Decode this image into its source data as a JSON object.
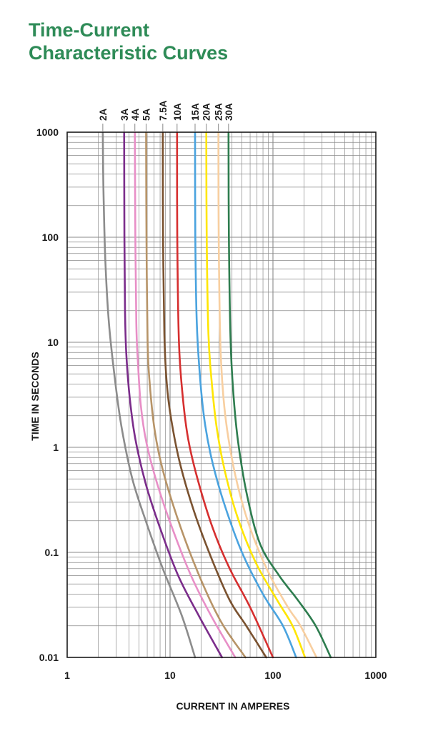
{
  "title_line1": "Time-Current",
  "title_line2": "Characteristic Curves",
  "colors": {
    "title": "#2e8b57",
    "grid": "#8a8a8a",
    "axis": "#1a1a1a"
  },
  "chart_data": {
    "type": "line",
    "title": "Time-Current Characteristic Curves",
    "xlabel": "CURRENT IN AMPERES",
    "ylabel": "TIME IN SECONDS",
    "xscale": "log",
    "yscale": "log",
    "xlim": [
      1,
      1000
    ],
    "ylim": [
      0.01,
      1000
    ],
    "xticks": [
      "1",
      "10",
      "100",
      "1000"
    ],
    "yticks": [
      "0.01",
      "0.1",
      "1",
      "10",
      "100",
      "1000"
    ],
    "grid": true,
    "series": [
      {
        "name": "2A",
        "color": "#8c8c8c",
        "points": [
          [
            2.22,
            1000
          ],
          [
            2.25,
            300
          ],
          [
            2.35,
            60
          ],
          [
            2.55,
            15
          ],
          [
            2.95,
            4
          ],
          [
            3.4,
            1.5
          ],
          [
            4.3,
            0.5
          ],
          [
            5.8,
            0.2
          ],
          [
            8.5,
            0.07
          ],
          [
            13,
            0.025
          ],
          [
            17.5,
            0.01
          ]
        ]
      },
      {
        "name": "3A",
        "color": "#7b2d8b",
        "points": [
          [
            3.58,
            1000
          ],
          [
            3.6,
            100
          ],
          [
            3.65,
            20
          ],
          [
            3.75,
            8
          ],
          [
            4.05,
            3
          ],
          [
            4.6,
            1.2
          ],
          [
            5.8,
            0.45
          ],
          [
            8,
            0.17
          ],
          [
            12,
            0.06
          ],
          [
            19,
            0.025
          ],
          [
            32,
            0.01
          ]
        ]
      },
      {
        "name": "4A",
        "color": "#e88fc7",
        "points": [
          [
            4.55,
            1000
          ],
          [
            4.6,
            100
          ],
          [
            4.7,
            15
          ],
          [
            4.85,
            7
          ],
          [
            5.2,
            2.5
          ],
          [
            5.9,
            1.1
          ],
          [
            7.5,
            0.45
          ],
          [
            10.5,
            0.17
          ],
          [
            16,
            0.06
          ],
          [
            25,
            0.025
          ],
          [
            43,
            0.01
          ]
        ]
      },
      {
        "name": "5A",
        "color": "#b79468",
        "points": [
          [
            5.85,
            1000
          ],
          [
            5.9,
            100
          ],
          [
            6.05,
            10
          ],
          [
            6.35,
            4
          ],
          [
            7.05,
            1.5
          ],
          [
            8.2,
            0.7
          ],
          [
            10.5,
            0.3
          ],
          [
            15,
            0.11
          ],
          [
            23,
            0.04
          ],
          [
            33,
            0.02
          ],
          [
            54,
            0.01
          ]
        ]
      },
      {
        "name": "7.5A",
        "color": "#7a5230",
        "points": [
          [
            8.5,
            1000
          ],
          [
            8.55,
            100
          ],
          [
            8.8,
            12
          ],
          [
            9.3,
            4
          ],
          [
            10.3,
            1.8
          ],
          [
            12.5,
            0.7
          ],
          [
            17,
            0.25
          ],
          [
            25,
            0.09
          ],
          [
            38,
            0.035
          ],
          [
            55,
            0.02
          ],
          [
            86,
            0.01
          ]
        ]
      },
      {
        "name": "10A",
        "color": "#d62f2f",
        "points": [
          [
            11.7,
            1000
          ],
          [
            11.75,
            100
          ],
          [
            12.2,
            10
          ],
          [
            13.3,
            3
          ],
          [
            15,
            1.2
          ],
          [
            18.5,
            0.5
          ],
          [
            26,
            0.17
          ],
          [
            38,
            0.07
          ],
          [
            60,
            0.03
          ],
          [
            100,
            0.01
          ]
        ]
      },
      {
        "name": "15A",
        "color": "#4aa3df",
        "points": [
          [
            17.5,
            1000
          ],
          [
            17.6,
            100
          ],
          [
            18.2,
            15
          ],
          [
            19.8,
            4
          ],
          [
            22,
            1.6
          ],
          [
            26,
            0.7
          ],
          [
            34,
            0.28
          ],
          [
            50,
            0.1
          ],
          [
            80,
            0.04
          ],
          [
            125,
            0.02
          ],
          [
            168,
            0.01
          ]
        ]
      },
      {
        "name": "20A",
        "color": "#ffe600",
        "points": [
          [
            22.5,
            1000
          ],
          [
            22.7,
            100
          ],
          [
            23.6,
            12
          ],
          [
            25.5,
            4
          ],
          [
            28.5,
            1.5
          ],
          [
            34,
            0.6
          ],
          [
            45,
            0.22
          ],
          [
            68,
            0.08
          ],
          [
            110,
            0.035
          ],
          [
            155,
            0.02
          ],
          [
            205,
            0.01
          ]
        ]
      },
      {
        "name": "25A",
        "color": "#f8cfa0",
        "points": [
          [
            29.5,
            1000
          ],
          [
            29.7,
            100
          ],
          [
            30.8,
            10
          ],
          [
            33,
            3
          ],
          [
            37,
            1.2
          ],
          [
            45,
            0.45
          ],
          [
            60,
            0.17
          ],
          [
            90,
            0.065
          ],
          [
            140,
            0.03
          ],
          [
            185,
            0.02
          ],
          [
            265,
            0.01
          ]
        ]
      },
      {
        "name": "30A",
        "color": "#2e7d4f",
        "points": [
          [
            37,
            1000
          ],
          [
            37.3,
            100
          ],
          [
            38.8,
            10
          ],
          [
            41.5,
            3
          ],
          [
            46,
            1.1
          ],
          [
            56,
            0.35
          ],
          [
            75,
            0.12
          ],
          [
            115,
            0.06
          ],
          [
            175,
            0.035
          ],
          [
            260,
            0.02
          ],
          [
            365,
            0.01
          ]
        ]
      }
    ]
  }
}
